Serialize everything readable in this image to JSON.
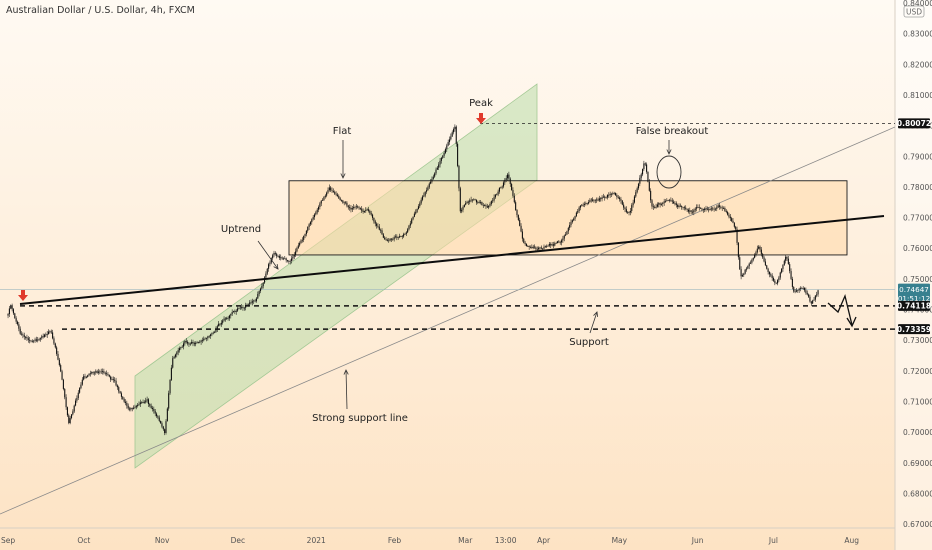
{
  "header": {
    "symbol_title": "Australian Dollar / U.S. Dollar, 4h, FXCM",
    "currency_badge": "USD"
  },
  "colors": {
    "background_top": "#fffaf3",
    "background_bottom": "#fde3c4",
    "channel_fill": "#b9dca9",
    "channel_edge": "#a4c995",
    "range_fill": "#ffd9a8",
    "candle": "#111111",
    "marker_arrow": "#e0392b",
    "price_badge": "#37808f",
    "axis_text": "#545454"
  },
  "annotations": {
    "peak": "Peak",
    "flat": "Flat",
    "false_breakout": "False breakout",
    "uptrend": "Uptrend",
    "support": "Support",
    "strong_support_line": "Strong support line"
  },
  "price_axis": {
    "ticks": [
      "0.84000",
      "0.83000",
      "0.82000",
      "0.81000",
      "0.80000",
      "0.79000",
      "0.78000",
      "0.77000",
      "0.76000",
      "0.75000",
      "0.74000",
      "0.73000",
      "0.72000",
      "0.71000",
      "0.70000",
      "0.69000",
      "0.68000",
      "0.67000"
    ],
    "badges": {
      "peak_level": "0.80072",
      "current_price": "0.74647",
      "countdown": "01:51:12",
      "support_1": "0.74118",
      "support_2": "0.73359"
    }
  },
  "time_axis": {
    "labels": [
      "Sep",
      "Oct",
      "Nov",
      "Dec",
      "2021",
      "Feb",
      "Mar",
      "13:00",
      "Apr",
      "May",
      "Jun",
      "Jul",
      "Aug"
    ]
  },
  "chart_data": {
    "type": "candlestick",
    "title": "Australian Dollar / U.S. Dollar, 4h, FXCM",
    "timeframe": "4h",
    "x_range": [
      "2020-09-01",
      "2021-08-01"
    ],
    "ylim": [
      0.665,
      0.84
    ],
    "current_price": 0.74647,
    "horizontal_levels": [
      {
        "value": 0.80072,
        "style": "dotted",
        "label": "Peak level"
      },
      {
        "value": 0.74118,
        "style": "dashed",
        "label": "Support"
      },
      {
        "value": 0.73359,
        "style": "dashed",
        "label": "Support"
      }
    ],
    "price_path": [
      {
        "date": "2020-09-01",
        "price": 0.738
      },
      {
        "date": "2020-09-02",
        "price": 0.741
      },
      {
        "date": "2020-09-06",
        "price": 0.732
      },
      {
        "date": "2020-09-11",
        "price": 0.729
      },
      {
        "date": "2020-09-18",
        "price": 0.733
      },
      {
        "date": "2020-09-22",
        "price": 0.72
      },
      {
        "date": "2020-09-25",
        "price": 0.703
      },
      {
        "date": "2020-10-01",
        "price": 0.718
      },
      {
        "date": "2020-10-08",
        "price": 0.72
      },
      {
        "date": "2020-10-13",
        "price": 0.716
      },
      {
        "date": "2020-10-19",
        "price": 0.708
      },
      {
        "date": "2020-10-26",
        "price": 0.71
      },
      {
        "date": "2020-11-02",
        "price": 0.7
      },
      {
        "date": "2020-11-05",
        "price": 0.724
      },
      {
        "date": "2020-11-10",
        "price": 0.729
      },
      {
        "date": "2020-11-18",
        "price": 0.73
      },
      {
        "date": "2020-11-25",
        "price": 0.736
      },
      {
        "date": "2020-12-01",
        "price": 0.74
      },
      {
        "date": "2020-12-08",
        "price": 0.743
      },
      {
        "date": "2020-12-15",
        "price": 0.758
      },
      {
        "date": "2020-12-22",
        "price": 0.756
      },
      {
        "date": "2020-12-31",
        "price": 0.77
      },
      {
        "date": "2021-01-06",
        "price": 0.78
      },
      {
        "date": "2021-01-14",
        "price": 0.773
      },
      {
        "date": "2021-01-22",
        "price": 0.772
      },
      {
        "date": "2021-01-29",
        "price": 0.762
      },
      {
        "date": "2021-02-05",
        "price": 0.765
      },
      {
        "date": "2021-02-12",
        "price": 0.776
      },
      {
        "date": "2021-02-19",
        "price": 0.788
      },
      {
        "date": "2021-02-25",
        "price": 0.8007
      },
      {
        "date": "2021-02-27",
        "price": 0.772
      },
      {
        "date": "2021-03-04",
        "price": 0.776
      },
      {
        "date": "2021-03-10",
        "price": 0.773
      },
      {
        "date": "2021-03-18",
        "price": 0.784
      },
      {
        "date": "2021-03-24",
        "price": 0.761
      },
      {
        "date": "2021-03-31",
        "price": 0.76
      },
      {
        "date": "2021-04-08",
        "price": 0.762
      },
      {
        "date": "2021-04-15",
        "price": 0.773
      },
      {
        "date": "2021-04-22",
        "price": 0.776
      },
      {
        "date": "2021-04-29",
        "price": 0.778
      },
      {
        "date": "2021-05-05",
        "price": 0.771
      },
      {
        "date": "2021-05-11",
        "price": 0.788
      },
      {
        "date": "2021-05-14",
        "price": 0.773
      },
      {
        "date": "2021-05-21",
        "price": 0.776
      },
      {
        "date": "2021-05-28",
        "price": 0.772
      },
      {
        "date": "2021-06-03",
        "price": 0.773
      },
      {
        "date": "2021-06-11",
        "price": 0.774
      },
      {
        "date": "2021-06-16",
        "price": 0.766
      },
      {
        "date": "2021-06-18",
        "price": 0.75
      },
      {
        "date": "2021-06-25",
        "price": 0.76
      },
      {
        "date": "2021-07-02",
        "price": 0.748
      },
      {
        "date": "2021-07-06",
        "price": 0.758
      },
      {
        "date": "2021-07-09",
        "price": 0.746
      },
      {
        "date": "2021-07-13",
        "price": 0.748
      },
      {
        "date": "2021-07-16",
        "price": 0.742
      },
      {
        "date": "2021-07-19",
        "price": 0.7465
      }
    ]
  }
}
